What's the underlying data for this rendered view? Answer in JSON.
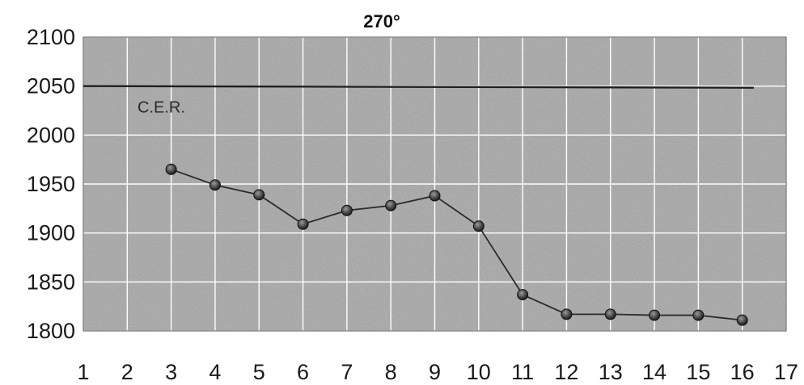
{
  "chart_data": {
    "type": "line",
    "title": "270°",
    "xlabel": "",
    "ylabel": "",
    "x": [
      3,
      4,
      5,
      6,
      7,
      8,
      9,
      10,
      11,
      12,
      13,
      14,
      15,
      16
    ],
    "series": [
      {
        "values": [
          1965,
          1949,
          1939,
          1909,
          1923,
          1928,
          1938,
          1907,
          1837,
          1817,
          1817,
          1816,
          1816,
          1811
        ]
      }
    ],
    "reference_line": {
      "label": "C.E.R.",
      "value": 2050
    },
    "xlim": [
      1,
      17
    ],
    "ylim": [
      1800,
      2100
    ],
    "x_ticks": [
      "1",
      "2",
      "3",
      "4",
      "5",
      "6",
      "7",
      "8",
      "9",
      "10",
      "11",
      "12",
      "13",
      "14",
      "15",
      "16",
      "17"
    ],
    "y_ticks": [
      "1800",
      "1850",
      "1900",
      "1950",
      "2000",
      "2050",
      "2100"
    ],
    "grid": true,
    "legend": "none",
    "colors": {
      "plot_background": "#a6a6a6",
      "grid": "#ffffff",
      "line": "#2b2b2b",
      "marker": "#3a3a3a",
      "reference_line": "#1e1e1e"
    }
  }
}
